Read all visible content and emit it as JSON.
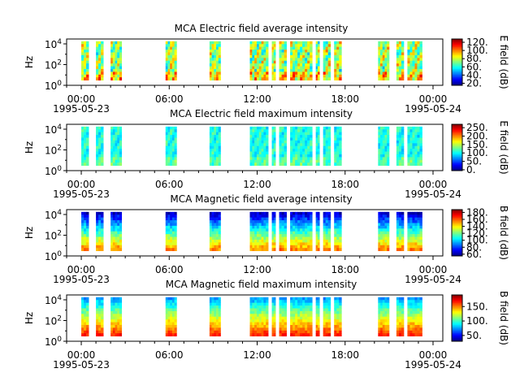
{
  "chart_data": [
    {
      "type": "heatmap",
      "title": "MCA  Electric field average intensity",
      "ylabel": "Hz",
      "yscale": "log",
      "y_ticks": [
        "10^0",
        "10^2",
        "10^4"
      ],
      "x_ticks": [
        "00:00",
        "06:00",
        "12:00",
        "18:00",
        "00:00"
      ],
      "x_dates": [
        "1995-05-23",
        "1995-05-24"
      ],
      "xlim": [
        "1995-05-22T23:00",
        "1995-05-24T00:40"
      ],
      "colorbar_label": "E field (dB)",
      "colorbar_ticks": [
        "20.",
        "40.",
        "60.",
        "80.",
        "100.",
        "120."
      ],
      "colorbar_range": [
        15,
        128
      ],
      "palette": "jet-rainbow",
      "data_intervals": [
        [
          "00:00",
          "00:30"
        ],
        [
          "01:00",
          "01:30"
        ],
        [
          "02:00",
          "02:45"
        ],
        [
          "05:45",
          "06:30"
        ],
        [
          "08:45",
          "09:30"
        ],
        [
          "11:30",
          "12:45"
        ],
        [
          "13:00",
          "13:15"
        ],
        [
          "13:30",
          "14:00"
        ],
        [
          "14:15",
          "15:45"
        ],
        [
          "16:00",
          "16:15"
        ],
        [
          "16:30",
          "17:00"
        ],
        [
          "17:15",
          "17:45"
        ],
        [
          "20:15",
          "21:00"
        ],
        [
          "21:30",
          "22:00"
        ],
        [
          "22:15",
          "23:15"
        ]
      ],
      "dominant_values_db": [
        60,
        90
      ]
    },
    {
      "type": "heatmap",
      "title": "MCA  Electric field maximum intensity",
      "ylabel": "Hz",
      "yscale": "log",
      "y_ticks": [
        "10^0",
        "10^2",
        "10^4"
      ],
      "x_ticks": [
        "00:00",
        "06:00",
        "12:00",
        "18:00",
        "00:00"
      ],
      "x_dates": [
        "1995-05-23",
        "1995-05-24"
      ],
      "xlim": [
        "1995-05-22T23:00",
        "1995-05-24T00:40"
      ],
      "colorbar_label": "E field (dB)",
      "colorbar_ticks": [
        "0.",
        "50.",
        "100.",
        "150.",
        "200.",
        "250."
      ],
      "colorbar_range": [
        -5,
        270
      ],
      "palette": "jet-rainbow",
      "data_intervals": [
        [
          "00:00",
          "00:30"
        ],
        [
          "01:00",
          "01:30"
        ],
        [
          "02:00",
          "02:45"
        ],
        [
          "05:45",
          "06:30"
        ],
        [
          "08:45",
          "09:30"
        ],
        [
          "11:30",
          "12:45"
        ],
        [
          "13:00",
          "13:15"
        ],
        [
          "13:30",
          "14:00"
        ],
        [
          "14:15",
          "15:45"
        ],
        [
          "16:00",
          "16:15"
        ],
        [
          "16:30",
          "17:00"
        ],
        [
          "17:15",
          "17:45"
        ],
        [
          "20:15",
          "21:00"
        ],
        [
          "21:30",
          "22:00"
        ],
        [
          "22:15",
          "23:15"
        ]
      ],
      "dominant_values_db": [
        90,
        120
      ]
    },
    {
      "type": "heatmap",
      "title": "MCA  Magnetic field average intensity",
      "ylabel": "Hz",
      "yscale": "log",
      "y_ticks": [
        "10^0",
        "10^2",
        "10^4"
      ],
      "x_ticks": [
        "00:00",
        "06:00",
        "12:00",
        "18:00",
        "00:00"
      ],
      "x_dates": [
        "1995-05-23",
        "1995-05-24"
      ],
      "xlim": [
        "1995-05-22T23:00",
        "1995-05-24T00:40"
      ],
      "colorbar_label": "B field (dB)",
      "colorbar_ticks": [
        "60.",
        "80.",
        "100.",
        "120.",
        "140.",
        "160.",
        "180."
      ],
      "colorbar_range": [
        55,
        188
      ],
      "palette": "jet-rainbow",
      "data_intervals": [
        [
          "00:00",
          "00:30"
        ],
        [
          "01:00",
          "01:30"
        ],
        [
          "02:00",
          "02:45"
        ],
        [
          "05:45",
          "06:30"
        ],
        [
          "08:45",
          "09:30"
        ],
        [
          "11:30",
          "12:45"
        ],
        [
          "13:00",
          "13:15"
        ],
        [
          "13:30",
          "14:00"
        ],
        [
          "14:15",
          "15:45"
        ],
        [
          "16:00",
          "16:15"
        ],
        [
          "16:30",
          "17:00"
        ],
        [
          "17:15",
          "17:45"
        ],
        [
          "20:15",
          "21:00"
        ],
        [
          "21:30",
          "22:00"
        ],
        [
          "22:15",
          "23:15"
        ]
      ],
      "dominant_values_db": [
        90,
        140
      ]
    },
    {
      "type": "heatmap",
      "title": "MCA  Magnetic field maximum intensity",
      "ylabel": "Hz",
      "yscale": "log",
      "y_ticks": [
        "10^0",
        "10^2",
        "10^4"
      ],
      "x_ticks": [
        "00:00",
        "06:00",
        "12:00",
        "18:00",
        "00:00"
      ],
      "x_dates": [
        "1995-05-23",
        "1995-05-24"
      ],
      "xlim": [
        "1995-05-22T23:00",
        "1995-05-24T00:40"
      ],
      "colorbar_label": "B field (dB)",
      "colorbar_ticks": [
        "50.",
        "100.",
        "150."
      ],
      "colorbar_range": [
        30,
        190
      ],
      "palette": "jet-rainbow",
      "data_intervals": [
        [
          "00:00",
          "00:30"
        ],
        [
          "01:00",
          "01:30"
        ],
        [
          "02:00",
          "02:45"
        ],
        [
          "05:45",
          "06:30"
        ],
        [
          "08:45",
          "09:30"
        ],
        [
          "11:30",
          "12:45"
        ],
        [
          "13:00",
          "13:15"
        ],
        [
          "13:30",
          "14:00"
        ],
        [
          "14:15",
          "15:45"
        ],
        [
          "16:00",
          "16:15"
        ],
        [
          "16:30",
          "17:00"
        ],
        [
          "17:15",
          "17:45"
        ],
        [
          "20:15",
          "21:00"
        ],
        [
          "21:30",
          "22:00"
        ],
        [
          "22:15",
          "23:15"
        ]
      ],
      "dominant_values_db": [
        100,
        150
      ]
    }
  ]
}
